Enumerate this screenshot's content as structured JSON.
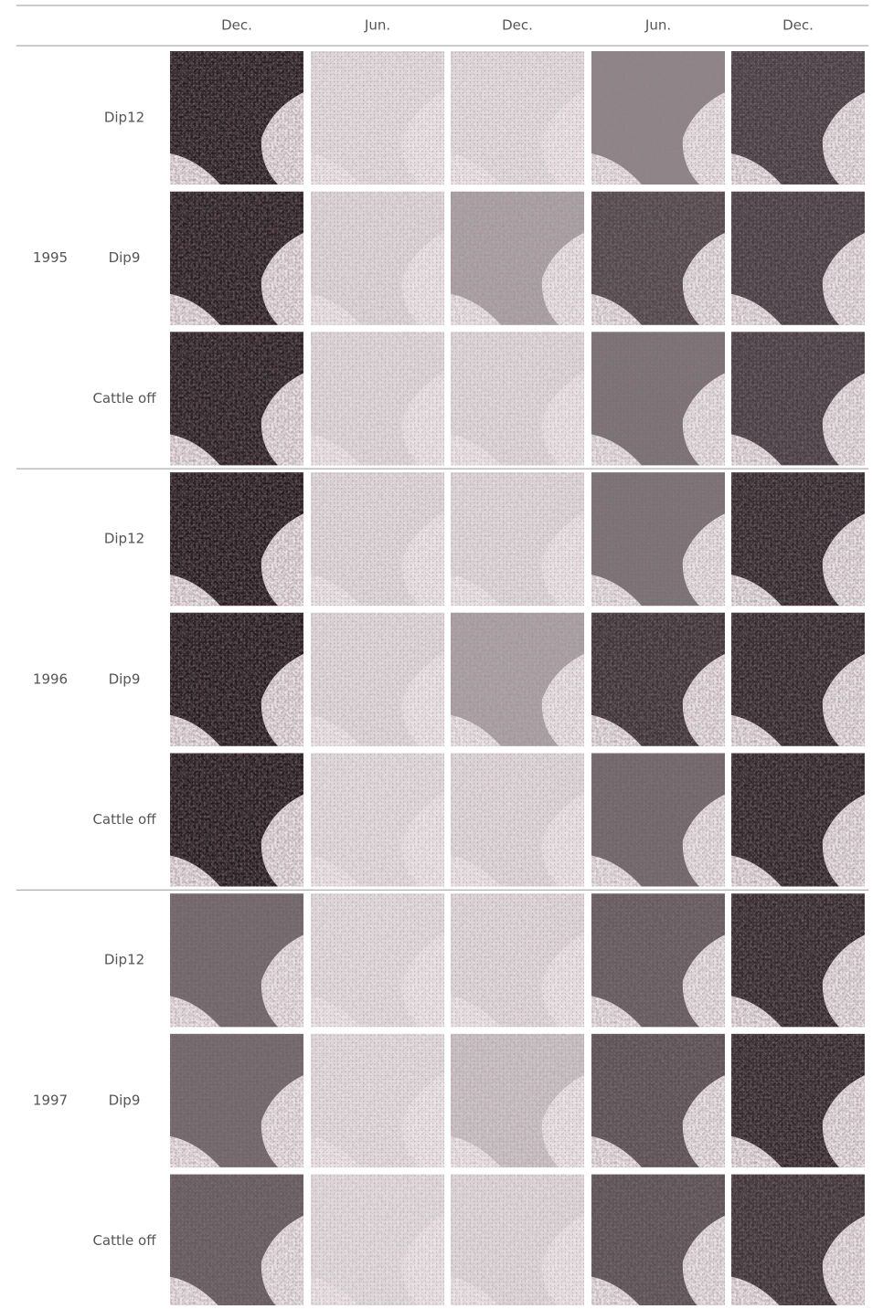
{
  "header": {
    "columns": [
      "Dec.",
      "Jun.",
      "Dec.",
      "Jun.",
      "Dec."
    ]
  },
  "groups": [
    {
      "year": "1995",
      "rows": [
        "Dip12",
        "Dip9",
        "Cattle off"
      ]
    },
    {
      "year": "1996",
      "rows": [
        "Dip12",
        "Dip9",
        "Cattle off"
      ]
    },
    {
      "year": "1997",
      "rows": [
        "Dip12",
        "Dip9",
        "Cattle off"
      ]
    }
  ]
}
